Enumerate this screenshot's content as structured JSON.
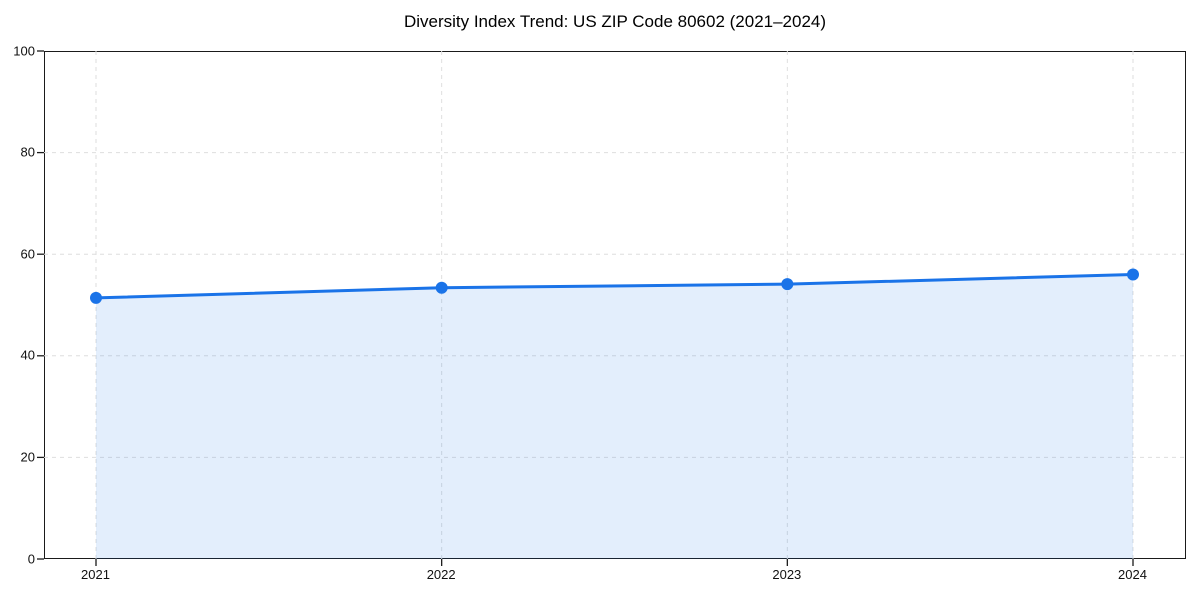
{
  "chart_data": {
    "type": "area",
    "title": "Diversity Index Trend: US ZIP Code 80602 (2021–2024)",
    "categories": [
      "2021",
      "2022",
      "2023",
      "2024"
    ],
    "values": [
      51.4,
      53.4,
      54.1,
      56.0
    ],
    "xlabel": "",
    "ylabel": "",
    "ylim": [
      0,
      100
    ],
    "yticks": [
      0,
      20,
      40,
      60,
      80,
      100
    ],
    "grid": true,
    "grid_style": "dashed",
    "legend": false,
    "marker": "circle",
    "colors": {
      "line": "#1a73e8",
      "marker": "#1a73e8",
      "fill": "rgba(26,115,232,0.12)",
      "grid": "#dedede",
      "axis": "#1a1a1a",
      "tick_label": "#111111",
      "title": "#000000",
      "background": "#ffffff"
    }
  }
}
